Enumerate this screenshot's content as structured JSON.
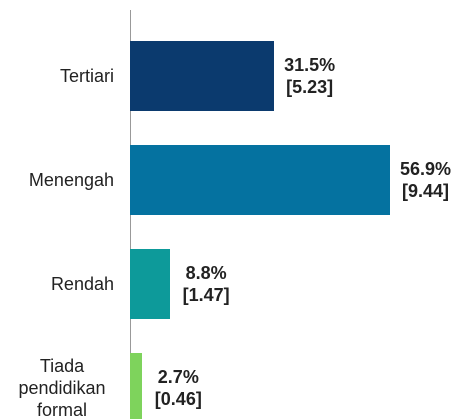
{
  "chart_data": {
    "type": "bar",
    "orientation": "horizontal",
    "categories": [
      "Tertiari",
      "Menengah",
      "Rendah",
      "Tiada pendidikan formal"
    ],
    "values": [
      31.5,
      56.9,
      8.8,
      2.7
    ],
    "value_labels": [
      [
        "31.5%",
        "[5.23]"
      ],
      [
        "56.9%",
        "[9.44]"
      ],
      [
        "8.8%",
        "[1.47]"
      ],
      [
        "2.7%",
        "[0.46]"
      ]
    ],
    "colors": [
      "#0b3a6e",
      "#0572a0",
      "#0d9a9a",
      "#7ed35c"
    ],
    "xlim": [
      0,
      57
    ]
  }
}
